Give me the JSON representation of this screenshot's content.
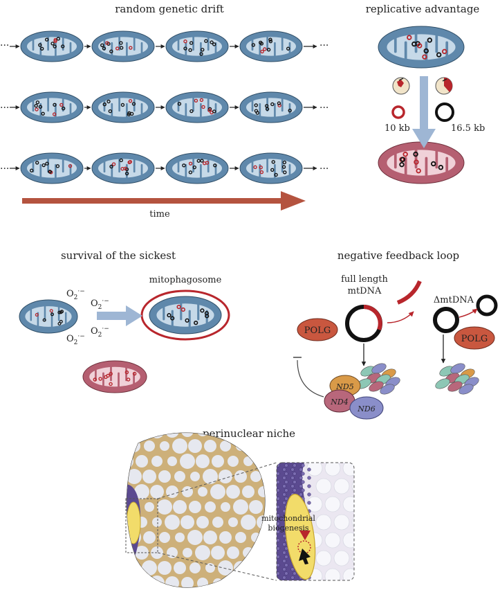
{
  "panels": {
    "drift": {
      "title": "random genetic drift",
      "time_label": "time",
      "ellipsis": "···"
    },
    "replicative": {
      "title": "replicative advantage",
      "small_size": "10 kb",
      "large_size": "16.5 kb"
    },
    "sickest": {
      "title": "survival of the sickest",
      "mitophagosome": "mitophagosome",
      "ros_base": "O",
      "ros_sub": "2",
      "ros_sup": "·−"
    },
    "feedback": {
      "title": "negative feedback loop",
      "full_length_line1": "full length",
      "full_length_line2": "mtDNA",
      "delta_mtdna": "ΔmtDNA",
      "polg": "POLG",
      "nd5": "ND5",
      "nd4": "ND4",
      "nd6": "ND6"
    },
    "niche": {
      "title": "perinuclear niche",
      "biogenesis_line1": "mitochondrial",
      "biogenesis_line2": "biogenesis"
    }
  },
  "colors": {
    "mito_blue": "#5f88ab",
    "mito_blue_light": "#c6d9e8",
    "mito_pink": "#b55f71",
    "mito_pink_light": "#f0d1d8",
    "mutant_red": "#b8262c",
    "time_arrow": "#b4533f",
    "feedback_arrow": "#9eb6d4",
    "polg": "#c9573f",
    "fiber": "#cdb07a",
    "nucleus": "#f2dc6a"
  }
}
